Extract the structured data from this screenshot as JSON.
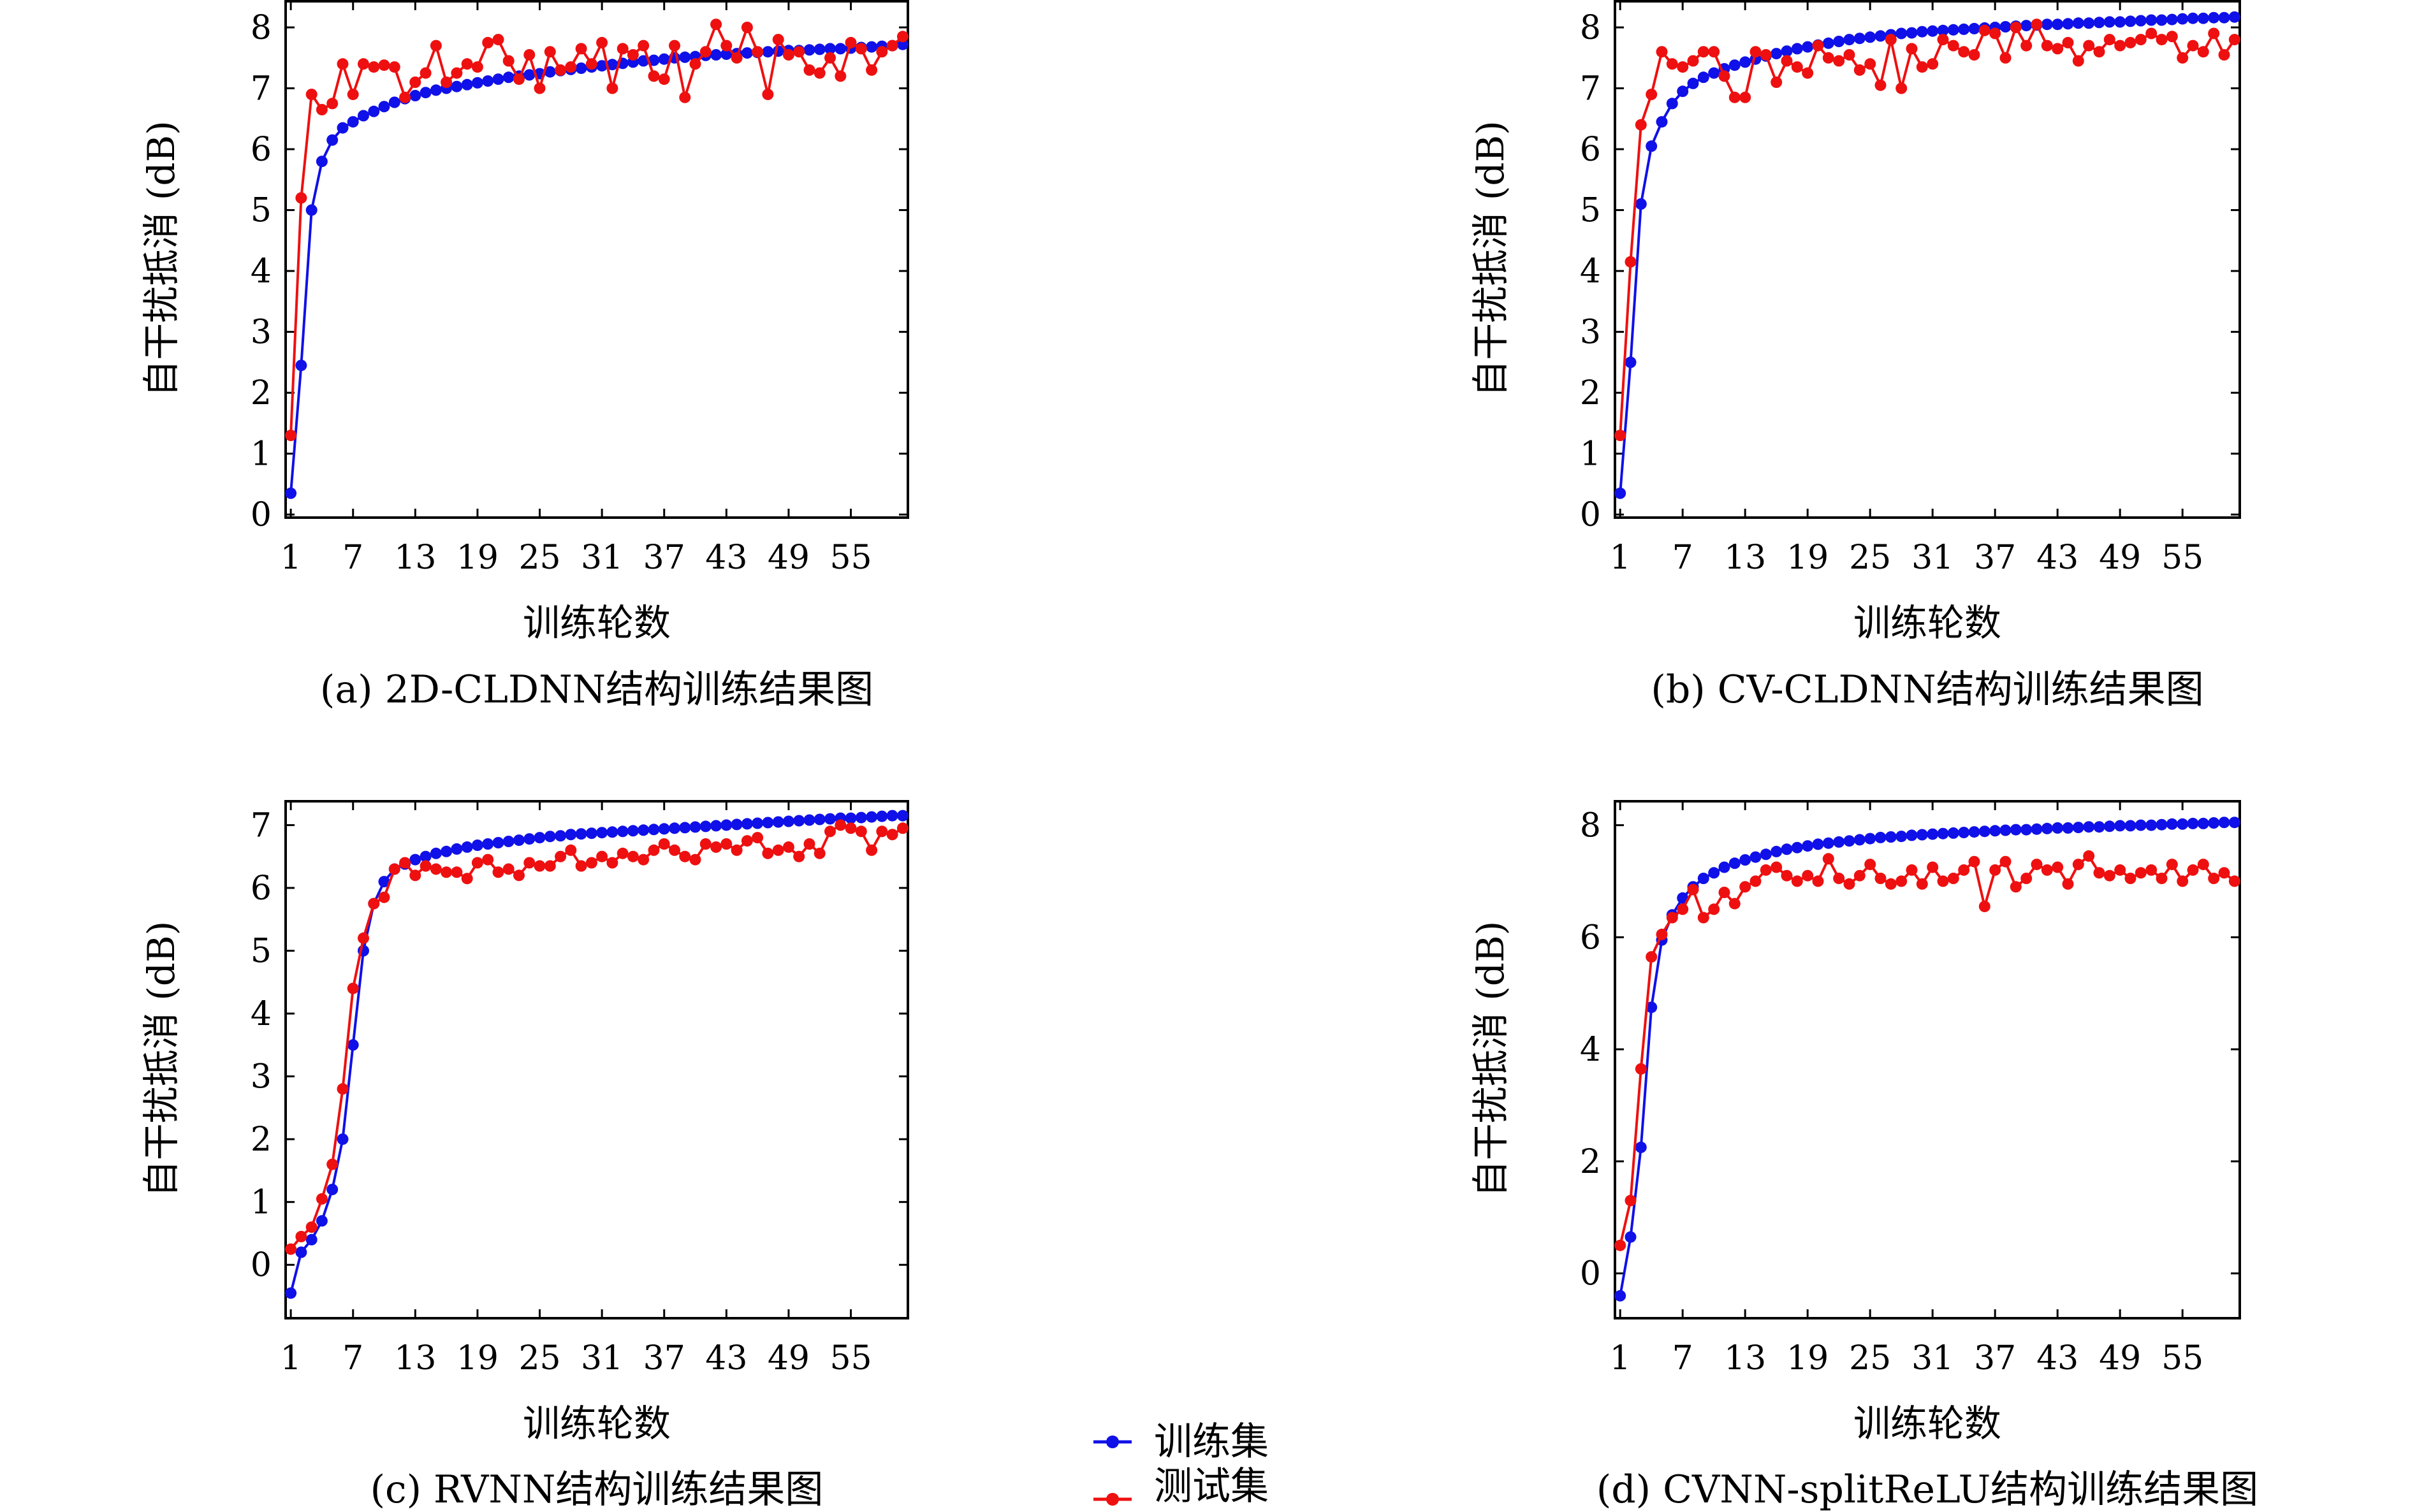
{
  "legend": [
    {
      "label": "训练集",
      "color": "#1010e8"
    },
    {
      "label": "测试集",
      "color": "#ee1010"
    }
  ],
  "chart_data": [
    {
      "type": "line",
      "caption": "(a) 2D-CLDNN结构训练结果图",
      "xlabel": "训练轮数",
      "ylabel": "自干扰抵消 (dB)",
      "xticks": [
        1,
        7,
        13,
        19,
        25,
        31,
        37,
        43,
        49,
        55
      ],
      "yticks": [
        0,
        1,
        2,
        3,
        4,
        5,
        6,
        7,
        8
      ],
      "xlim": [
        0.5,
        60.5
      ],
      "ylim": [
        -0.05,
        8.45
      ],
      "series": [
        {
          "name": "训练集",
          "color": "#1010e8",
          "values": [
            0.35,
            2.45,
            5.0,
            5.8,
            6.15,
            6.35,
            6.45,
            6.55,
            6.62,
            6.7,
            6.77,
            6.83,
            6.88,
            6.93,
            6.97,
            7.0,
            7.03,
            7.06,
            7.09,
            7.12,
            7.15,
            7.18,
            7.2,
            7.22,
            7.24,
            7.27,
            7.29,
            7.31,
            7.33,
            7.35,
            7.37,
            7.39,
            7.41,
            7.43,
            7.45,
            7.46,
            7.48,
            7.5,
            7.51,
            7.52,
            7.54,
            7.55,
            7.56,
            7.57,
            7.58,
            7.59,
            7.6,
            7.61,
            7.62,
            7.62,
            7.63,
            7.64,
            7.65,
            7.65,
            7.66,
            7.67,
            7.68,
            7.69,
            7.7,
            7.72
          ]
        },
        {
          "name": "测试集",
          "color": "#ee1010",
          "values": [
            1.3,
            5.2,
            6.9,
            6.65,
            6.75,
            7.4,
            6.9,
            7.4,
            7.35,
            7.38,
            7.35,
            6.85,
            7.1,
            7.25,
            7.7,
            7.1,
            7.25,
            7.4,
            7.35,
            7.75,
            7.8,
            7.45,
            7.15,
            7.55,
            7.0,
            7.6,
            7.3,
            7.35,
            7.65,
            7.4,
            7.75,
            7.0,
            7.65,
            7.55,
            7.7,
            7.2,
            7.15,
            7.7,
            6.85,
            7.4,
            7.6,
            8.05,
            7.7,
            7.5,
            8.0,
            7.6,
            6.9,
            7.8,
            7.55,
            7.6,
            7.3,
            7.25,
            7.5,
            7.2,
            7.75,
            7.65,
            7.3,
            7.6,
            7.7,
            7.85
          ]
        }
      ]
    },
    {
      "type": "line",
      "caption": "(b) CV-CLDNN结构训练结果图",
      "xlabel": "训练轮数",
      "ylabel": "自干扰抵消 (dB)",
      "xticks": [
        1,
        7,
        13,
        19,
        25,
        31,
        37,
        43,
        49,
        55
      ],
      "yticks": [
        0,
        1,
        2,
        3,
        4,
        5,
        6,
        7,
        8
      ],
      "xlim": [
        0.5,
        60.5
      ],
      "ylim": [
        -0.05,
        8.45
      ],
      "series": [
        {
          "name": "训练集",
          "color": "#1010e8",
          "values": [
            0.35,
            2.5,
            5.1,
            6.05,
            6.45,
            6.75,
            6.95,
            7.08,
            7.18,
            7.25,
            7.32,
            7.38,
            7.43,
            7.48,
            7.53,
            7.57,
            7.61,
            7.65,
            7.68,
            7.71,
            7.74,
            7.77,
            7.8,
            7.82,
            7.84,
            7.86,
            7.88,
            7.9,
            7.91,
            7.93,
            7.94,
            7.95,
            7.96,
            7.97,
            7.98,
            7.99,
            8.0,
            8.01,
            8.02,
            8.03,
            8.04,
            8.05,
            8.05,
            8.06,
            8.07,
            8.07,
            8.08,
            8.09,
            8.09,
            8.1,
            8.11,
            8.12,
            8.12,
            8.13,
            8.14,
            8.15,
            8.15,
            8.16,
            8.16,
            8.17
          ]
        },
        {
          "name": "测试集",
          "color": "#ee1010",
          "values": [
            1.3,
            4.15,
            6.4,
            6.9,
            7.6,
            7.4,
            7.35,
            7.45,
            7.6,
            7.6,
            7.2,
            6.85,
            6.85,
            7.6,
            7.55,
            7.1,
            7.45,
            7.35,
            7.25,
            7.7,
            7.5,
            7.45,
            7.55,
            7.3,
            7.4,
            7.05,
            7.8,
            7.0,
            7.65,
            7.35,
            7.4,
            7.8,
            7.7,
            7.6,
            7.55,
            7.95,
            7.9,
            7.5,
            8.0,
            7.7,
            8.05,
            7.7,
            7.65,
            7.75,
            7.45,
            7.7,
            7.6,
            7.8,
            7.7,
            7.75,
            7.8,
            7.9,
            7.8,
            7.85,
            7.5,
            7.7,
            7.6,
            7.9,
            7.55,
            7.8
          ]
        }
      ]
    },
    {
      "type": "line",
      "caption": "(c) RVNN结构训练结果图",
      "xlabel": "训练轮数",
      "ylabel": "自干扰抵消 (dB)",
      "xticks": [
        1,
        7,
        13,
        19,
        25,
        31,
        37,
        43,
        49,
        55
      ],
      "yticks": [
        0,
        1,
        2,
        3,
        4,
        5,
        6,
        7
      ],
      "xlim": [
        0.5,
        60.5
      ],
      "ylim": [
        -0.85,
        7.4
      ],
      "series": [
        {
          "name": "训练集",
          "color": "#1010e8",
          "values": [
            -0.45,
            0.2,
            0.4,
            0.7,
            1.2,
            2.0,
            3.5,
            5.0,
            5.75,
            6.1,
            6.3,
            6.38,
            6.45,
            6.5,
            6.55,
            6.58,
            6.62,
            6.65,
            6.68,
            6.7,
            6.72,
            6.74,
            6.76,
            6.78,
            6.8,
            6.82,
            6.83,
            6.85,
            6.86,
            6.87,
            6.88,
            6.89,
            6.9,
            6.91,
            6.92,
            6.93,
            6.94,
            6.95,
            6.96,
            6.97,
            6.98,
            6.99,
            7.0,
            7.01,
            7.02,
            7.03,
            7.04,
            7.05,
            7.06,
            7.07,
            7.08,
            7.09,
            7.1,
            7.11,
            7.11,
            7.12,
            7.13,
            7.14,
            7.15,
            7.15
          ]
        },
        {
          "name": "测试集",
          "color": "#ee1010",
          "values": [
            0.25,
            0.45,
            0.6,
            1.05,
            1.6,
            2.8,
            4.4,
            5.2,
            5.75,
            5.85,
            6.3,
            6.4,
            6.2,
            6.35,
            6.3,
            6.25,
            6.25,
            6.15,
            6.4,
            6.45,
            6.25,
            6.3,
            6.2,
            6.4,
            6.35,
            6.35,
            6.5,
            6.6,
            6.35,
            6.4,
            6.5,
            6.4,
            6.55,
            6.5,
            6.45,
            6.6,
            6.7,
            6.6,
            6.5,
            6.45,
            6.7,
            6.65,
            6.7,
            6.6,
            6.75,
            6.8,
            6.55,
            6.6,
            6.65,
            6.5,
            6.7,
            6.55,
            6.9,
            7.0,
            6.95,
            6.9,
            6.6,
            6.9,
            6.85,
            6.95
          ]
        }
      ]
    },
    {
      "type": "line",
      "caption": "(d) CVNN-splitReLU结构训练结果图",
      "xlabel": "训练轮数",
      "ylabel": "自干扰抵消 (dB)",
      "xticks": [
        1,
        7,
        13,
        19,
        25,
        31,
        37,
        43,
        49,
        55
      ],
      "yticks": [
        0,
        2,
        4,
        6,
        8
      ],
      "xlim": [
        0.5,
        60.5
      ],
      "ylim": [
        -0.8,
        8.45
      ],
      "series": [
        {
          "name": "训练集",
          "color": "#1010e8",
          "values": [
            -0.4,
            0.65,
            2.25,
            4.75,
            5.95,
            6.4,
            6.7,
            6.9,
            7.05,
            7.15,
            7.25,
            7.32,
            7.38,
            7.43,
            7.48,
            7.53,
            7.57,
            7.6,
            7.63,
            7.66,
            7.68,
            7.7,
            7.72,
            7.74,
            7.76,
            7.78,
            7.79,
            7.8,
            7.82,
            7.83,
            7.84,
            7.85,
            7.86,
            7.87,
            7.88,
            7.89,
            7.9,
            7.91,
            7.92,
            7.92,
            7.93,
            7.94,
            7.95,
            7.95,
            7.96,
            7.97,
            7.97,
            7.98,
            7.99,
            7.99,
            8.0,
            8.0,
            8.01,
            8.02,
            8.02,
            8.03,
            8.03,
            8.04,
            8.05,
            8.05
          ]
        },
        {
          "name": "测试集",
          "color": "#ee1010",
          "values": [
            0.5,
            1.3,
            3.65,
            5.65,
            6.05,
            6.35,
            6.5,
            6.85,
            6.35,
            6.5,
            6.8,
            6.6,
            6.9,
            7.0,
            7.2,
            7.25,
            7.1,
            7.0,
            7.1,
            7.0,
            7.4,
            7.05,
            6.95,
            7.1,
            7.3,
            7.05,
            6.95,
            7.0,
            7.2,
            6.95,
            7.25,
            7.0,
            7.05,
            7.2,
            7.35,
            6.55,
            7.2,
            7.35,
            6.9,
            7.05,
            7.3,
            7.2,
            7.25,
            6.95,
            7.3,
            7.45,
            7.15,
            7.1,
            7.2,
            7.05,
            7.15,
            7.2,
            7.05,
            7.3,
            7.0,
            7.2,
            7.3,
            7.05,
            7.15,
            7.0
          ]
        }
      ]
    }
  ]
}
